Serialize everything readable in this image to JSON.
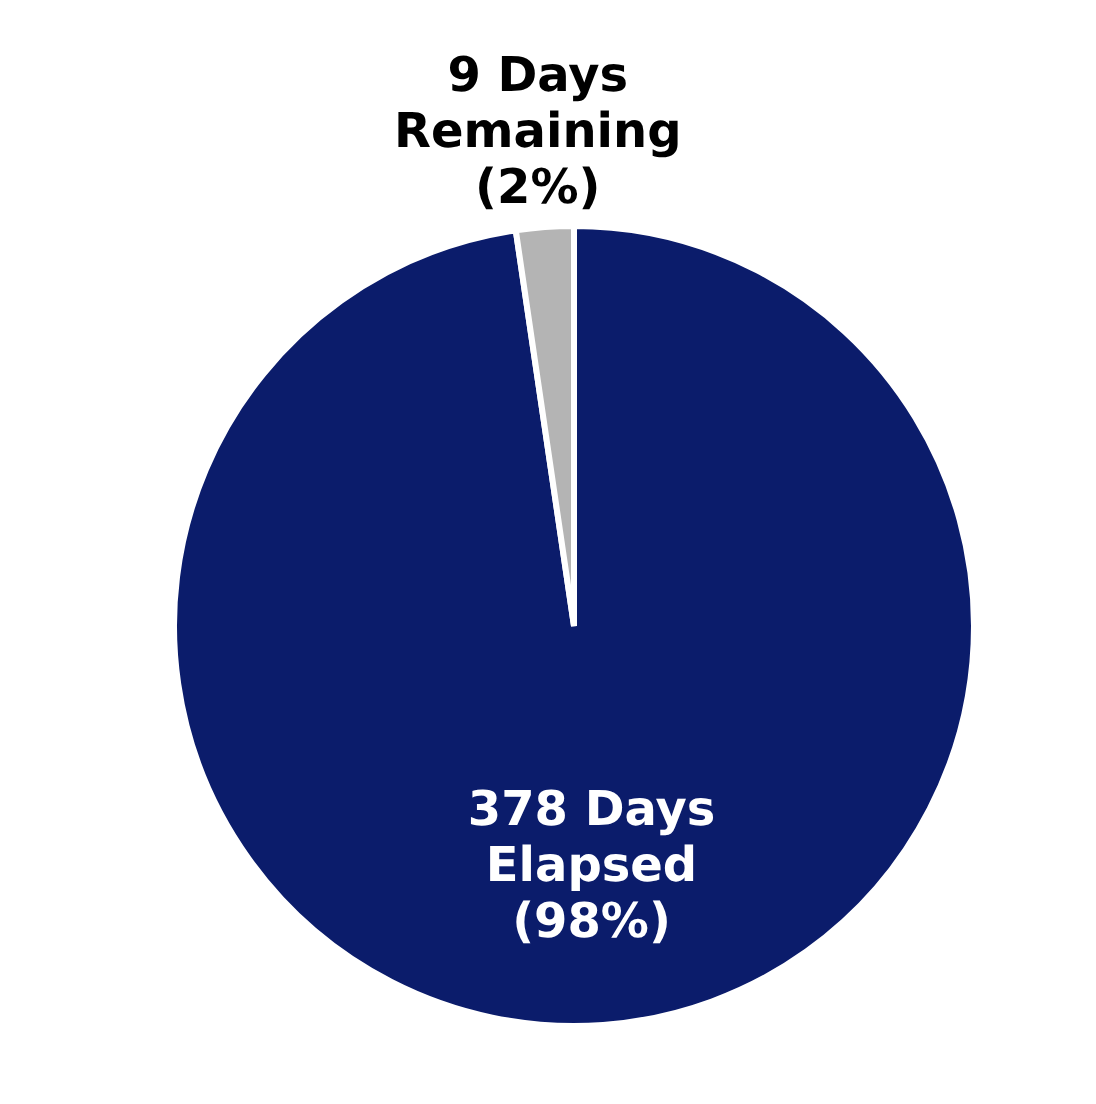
{
  "chart_data": {
    "type": "pie",
    "categories": [
      "378 Days Elapsed (98%)",
      "9 Days Remaining (2%)"
    ],
    "values": [
      378,
      9
    ],
    "colors": [
      "#0b1c6b",
      "#b4b4b4"
    ],
    "legend": false
  }
}
